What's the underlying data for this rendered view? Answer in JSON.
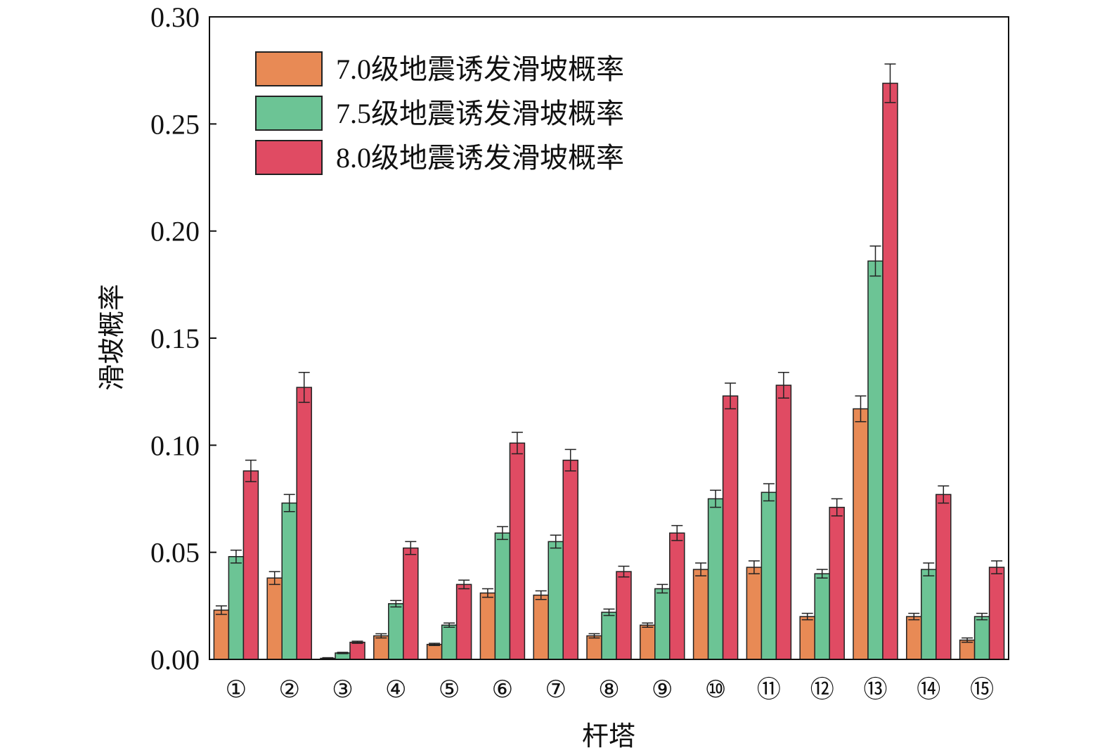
{
  "chart_data": {
    "type": "bar",
    "xlabel": "杆塔",
    "ylabel": "滑坡概率",
    "ylim": [
      0,
      0.3
    ],
    "yticks": [
      "0.00",
      "0.05",
      "0.10",
      "0.15",
      "0.20",
      "0.25",
      "0.30"
    ],
    "categories": [
      "①",
      "②",
      "③",
      "④",
      "⑤",
      "⑥",
      "⑦",
      "⑧",
      "⑨",
      "⑩",
      "⑪",
      "⑫",
      "⑬",
      "⑭",
      "⑮"
    ],
    "legend_position": "top-left",
    "grid": false,
    "series": [
      {
        "name": "7.0级地震诱发滑坡概率",
        "color": "#E88A55",
        "values": [
          0.023,
          0.038,
          0.0005,
          0.011,
          0.007,
          0.031,
          0.03,
          0.011,
          0.016,
          0.042,
          0.043,
          0.02,
          0.117,
          0.02,
          0.009
        ],
        "errors": [
          0.002,
          0.003,
          0.0003,
          0.001,
          0.0005,
          0.002,
          0.002,
          0.001,
          0.001,
          0.003,
          0.003,
          0.0015,
          0.006,
          0.0015,
          0.001
        ]
      },
      {
        "name": "7.5级地震诱发滑坡概率",
        "color": "#6CC495",
        "values": [
          0.048,
          0.073,
          0.003,
          0.026,
          0.016,
          0.059,
          0.055,
          0.022,
          0.033,
          0.075,
          0.078,
          0.04,
          0.186,
          0.042,
          0.02
        ],
        "errors": [
          0.003,
          0.004,
          0.0003,
          0.0015,
          0.001,
          0.003,
          0.003,
          0.0015,
          0.002,
          0.004,
          0.004,
          0.002,
          0.007,
          0.003,
          0.0015
        ]
      },
      {
        "name": "8.0级地震诱发滑坡概率",
        "color": "#E04B63",
        "values": [
          0.088,
          0.127,
          0.008,
          0.052,
          0.035,
          0.101,
          0.093,
          0.041,
          0.059,
          0.123,
          0.128,
          0.071,
          0.269,
          0.077,
          0.043
        ],
        "errors": [
          0.005,
          0.007,
          0.0005,
          0.003,
          0.002,
          0.005,
          0.005,
          0.0025,
          0.0035,
          0.006,
          0.006,
          0.004,
          0.009,
          0.004,
          0.003
        ]
      }
    ]
  }
}
